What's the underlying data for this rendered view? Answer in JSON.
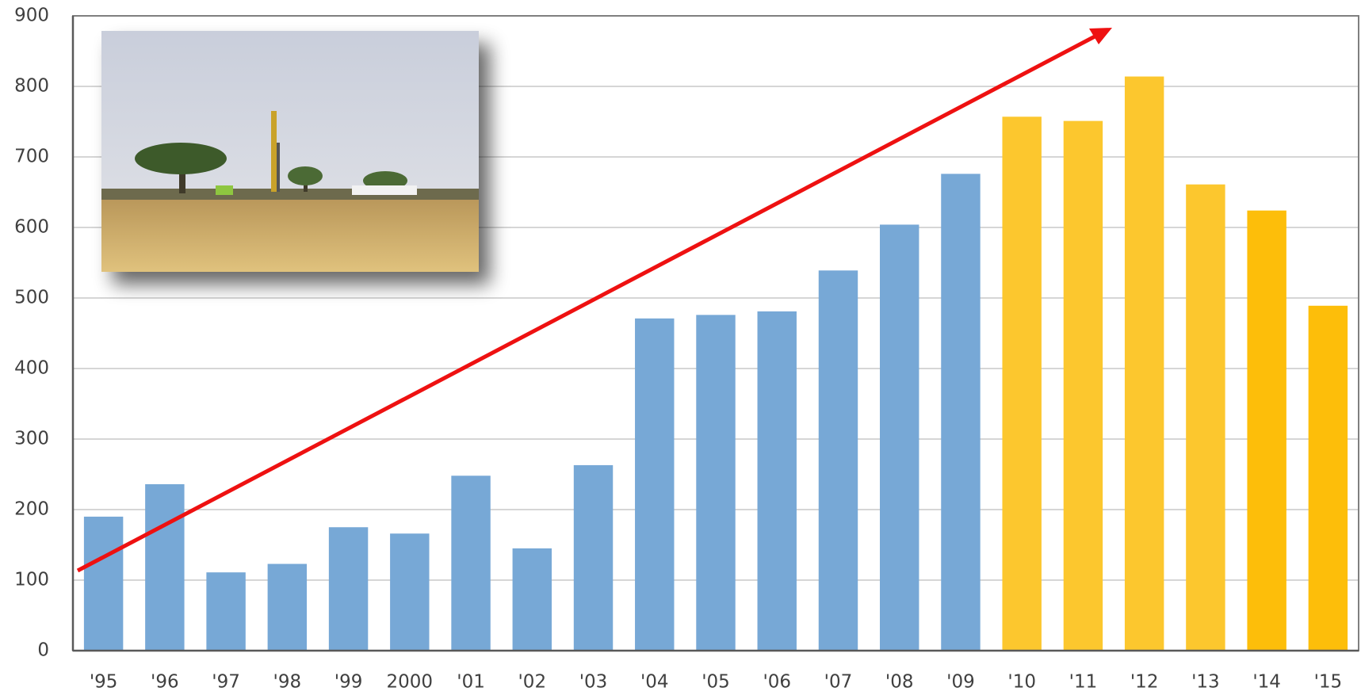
{
  "chart_data": {
    "type": "bar",
    "categories": [
      "'95",
      "'96",
      "'97",
      "'98",
      "'99",
      "2000",
      "'01",
      "'02",
      "'03",
      "'04",
      "'05",
      "'06",
      "'07",
      "'08",
      "'09",
      "'10",
      "'11",
      "'12",
      "'13",
      "'14",
      "'15"
    ],
    "values": [
      190,
      236,
      111,
      123,
      175,
      166,
      248,
      145,
      263,
      471,
      476,
      481,
      539,
      604,
      676,
      757,
      751,
      814,
      661,
      624,
      489
    ],
    "colors": [
      "#77a8d6",
      "#77a8d6",
      "#77a8d6",
      "#77a8d6",
      "#77a8d6",
      "#77a8d6",
      "#77a8d6",
      "#77a8d6",
      "#77a8d6",
      "#77a8d6",
      "#77a8d6",
      "#77a8d6",
      "#77a8d6",
      "#77a8d6",
      "#77a8d6",
      "#fcc72e",
      "#fcc72e",
      "#fcc72e",
      "#fcc72e",
      "#fdbe0a",
      "#fdbe0a"
    ],
    "ylim": [
      0,
      900
    ],
    "yticks": [
      0,
      100,
      200,
      300,
      400,
      500,
      600,
      700,
      800,
      900
    ],
    "grid": true
  }
}
